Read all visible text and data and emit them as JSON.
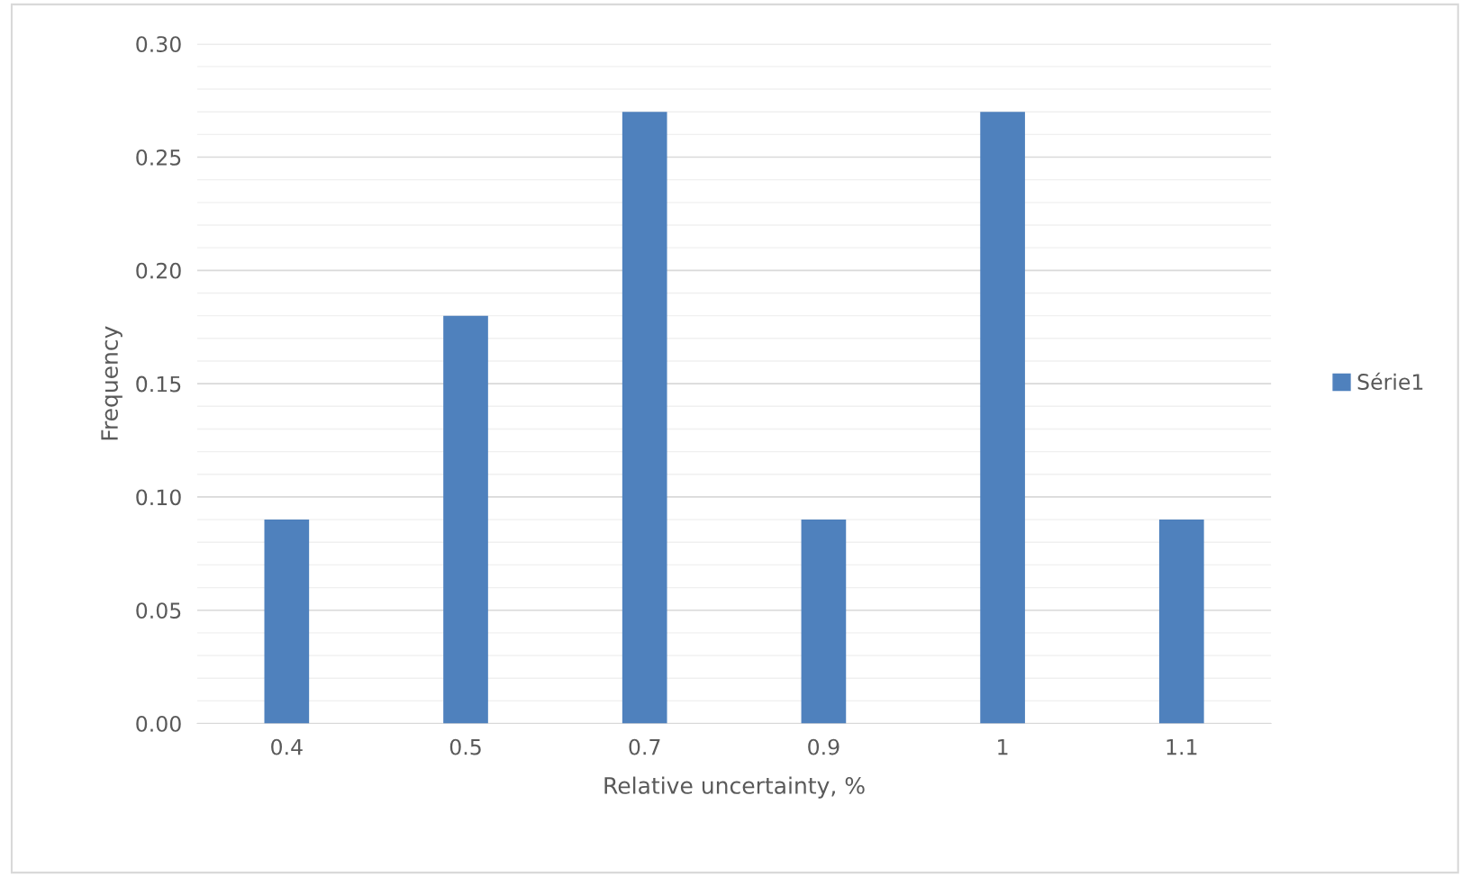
{
  "chart_data": {
    "type": "bar",
    "xlabel": "Relative uncertainty, %",
    "ylabel": "Frequency",
    "categories": [
      "0.4",
      "0.5",
      "0.7",
      "0.9",
      "1",
      "1.1"
    ],
    "series": [
      {
        "name": "Série1",
        "color": "#4f81bd",
        "values": [
          0.09,
          0.18,
          0.27,
          0.09,
          0.27,
          0.09
        ]
      }
    ],
    "ylim": [
      0,
      0.3
    ],
    "yticks": [
      "0.00",
      {
        "value": 0.01,
        "label": null
      },
      {
        "value": 0.02,
        "label": null
      },
      {
        "value": 0.03,
        "label": null
      },
      {
        "value": 0.04,
        "label": null
      },
      {
        "value": 0.05,
        "label": "0.05"
      },
      {
        "value": 0.06,
        "label": null
      },
      {
        "value": 0.07,
        "label": null
      },
      {
        "value": 0.08,
        "label": null
      },
      {
        "value": 0.09,
        "label": null
      },
      {
        "value": 0.1,
        "label": "0.10"
      },
      {
        "value": 0.11,
        "label": null
      },
      {
        "value": 0.12,
        "label": null
      },
      {
        "value": 0.13,
        "label": null
      },
      {
        "value": 0.14,
        "label": null
      },
      {
        "value": 0.15,
        "label": "0.15"
      },
      {
        "value": 0.16,
        "label": null
      },
      {
        "value": 0.17,
        "label": null
      },
      {
        "value": 0.18,
        "label": null
      },
      {
        "value": 0.19,
        "label": null
      },
      {
        "value": 0.2,
        "label": "0.20"
      },
      {
        "value": 0.21,
        "label": null
      },
      {
        "value": 0.22,
        "label": null
      },
      {
        "value": 0.23,
        "label": null
      },
      {
        "value": 0.24,
        "label": null
      },
      {
        "value": 0.25,
        "label": "0.25"
      },
      {
        "value": 0.26,
        "label": null
      },
      {
        "value": 0.27,
        "label": null
      },
      {
        "value": 0.28,
        "label": null
      },
      {
        "value": 0.29,
        "label": null
      },
      {
        "value": 0.3,
        "label": "0.30"
      }
    ],
    "grid": "y",
    "legend": "right"
  }
}
